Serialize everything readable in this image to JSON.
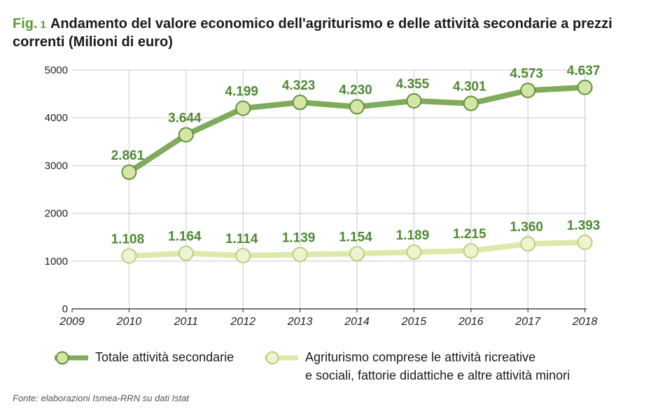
{
  "header": {
    "fig_prefix": "Fig.",
    "fig_number": "1",
    "title": "Andamento del valore economico dell'agriturismo e delle attività secondarie a prezzi correnti (Milioni di euro)"
  },
  "chart_data": {
    "type": "line",
    "x": [
      2010,
      2011,
      2012,
      2013,
      2014,
      2015,
      2016,
      2017,
      2018
    ],
    "x_tick_labels": [
      "2009",
      "2010",
      "2011",
      "2012",
      "2013",
      "2014",
      "2015",
      "2016",
      "2017",
      "2018"
    ],
    "xlim": [
      2009,
      2018.3
    ],
    "ylim": [
      0,
      5000
    ],
    "y_ticks": [
      0,
      1000,
      2000,
      3000,
      4000,
      5000
    ],
    "y_tick_labels": [
      "0",
      "1000",
      "2000",
      "3000",
      "4000",
      "5000"
    ],
    "grid": true,
    "series": [
      {
        "name": "Totale attività secondarie",
        "values": [
          2861,
          3644,
          4199,
          4323,
          4230,
          4355,
          4301,
          4573,
          4637
        ],
        "labels": [
          "2.861",
          "3.644",
          "4.199",
          "4.323",
          "4.230",
          "4.355",
          "4.301",
          "4.573",
          "4.637"
        ],
        "line_color": "#7fab5a",
        "marker_fill": "#d6e5a6",
        "marker_stroke": "#5f9440"
      },
      {
        "name": "Agriturismo comprese le attività ricreative e sociali, fattorie didattiche e altre attività minori",
        "values": [
          1108,
          1164,
          1114,
          1139,
          1154,
          1189,
          1215,
          1360,
          1393
        ],
        "labels": [
          "1.108",
          "1.164",
          "1.114",
          "1.139",
          "1.154",
          "1.189",
          "1.215",
          "1.360",
          "1.393"
        ],
        "line_color": "#dde9ab",
        "marker_fill": "#eef4d2",
        "marker_stroke": "#b9cf7e"
      }
    ],
    "label_color": "#4e8a33"
  },
  "legend": {
    "items": [
      {
        "label_line1": "Totale attività secondarie",
        "label_line2": ""
      },
      {
        "label_line1": "Agriturismo comprese le attività ricreative",
        "label_line2": "e sociali, fattorie didattiche e altre attività minori"
      }
    ]
  },
  "source": "Fonte: elaborazioni Ismea-RRN su dati Istat"
}
